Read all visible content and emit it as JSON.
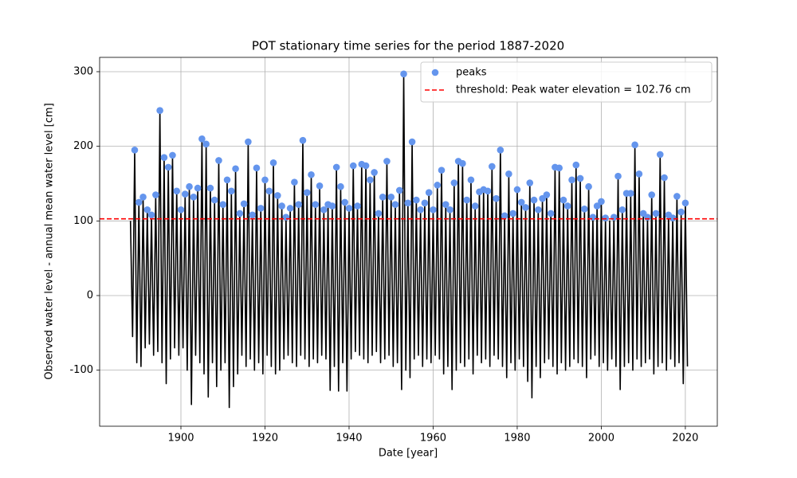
{
  "chart_data": {
    "type": "line",
    "title": "POT stationary time series for the period 1887-2020",
    "x_label": "Date [year]",
    "y_label": "Observed water level - annual mean water level [cm]",
    "xlim": [
      1880.66,
      2027.6
    ],
    "ylim": [
      -175.1,
      319.2
    ],
    "xticks": [
      1900,
      1920,
      1940,
      1960,
      1980,
      2000,
      2020
    ],
    "yticks": [
      -100,
      0,
      100,
      200,
      300
    ],
    "grid": true,
    "legend": "upper right",
    "line": {
      "color": "#000000",
      "x": [
        1888,
        1888.5,
        1889,
        1889.5,
        1890,
        1890.5,
        1891,
        1891.5,
        1892,
        1892.5,
        1893,
        1893.5,
        1894,
        1894.5,
        1895,
        1895.5,
        1896,
        1896.5,
        1897,
        1897.5,
        1898,
        1898.5,
        1899,
        1899.5,
        1900,
        1900.5,
        1901,
        1901.5,
        1902,
        1902.5,
        1903,
        1903.5,
        1904,
        1904.5,
        1905,
        1905.5,
        1906,
        1906.5,
        1907,
        1907.5,
        1908,
        1908.5,
        1909,
        1909.5,
        1910,
        1910.5,
        1911,
        1911.5,
        1912,
        1912.5,
        1913,
        1913.5,
        1914,
        1914.5,
        1915,
        1915.5,
        1916,
        1916.5,
        1917,
        1917.5,
        1918,
        1918.5,
        1919,
        1919.5,
        1920,
        1920.5,
        1921,
        1921.5,
        1922,
        1922.5,
        1923,
        1923.5,
        1924,
        1924.5,
        1925,
        1925.5,
        1926,
        1926.5,
        1927,
        1927.5,
        1928,
        1928.5,
        1929,
        1929.5,
        1930,
        1930.5,
        1931,
        1931.5,
        1932,
        1932.5,
        1933,
        1933.5,
        1934,
        1934.5,
        1935,
        1935.5,
        1936,
        1936.5,
        1937,
        1937.5,
        1938,
        1938.5,
        1939,
        1939.5,
        1940,
        1940.5,
        1941,
        1941.5,
        1942,
        1942.5,
        1943,
        1943.5,
        1944,
        1944.5,
        1945,
        1945.5,
        1946,
        1946.5,
        1947,
        1947.5,
        1948,
        1948.5,
        1949,
        1949.5,
        1950,
        1950.5,
        1951,
        1951.5,
        1952,
        1952.5,
        1953,
        1953.5,
        1954,
        1954.5,
        1955,
        1955.5,
        1956,
        1956.5,
        1957,
        1957.5,
        1958,
        1958.5,
        1959,
        1959.5,
        1960,
        1960.5,
        1961,
        1961.5,
        1962,
        1962.5,
        1963,
        1963.5,
        1964,
        1964.5,
        1965,
        1965.5,
        1966,
        1966.5,
        1967,
        1967.5,
        1968,
        1968.5,
        1969,
        1969.5,
        1970,
        1970.5,
        1971,
        1971.5,
        1972,
        1972.5,
        1973,
        1973.5,
        1974,
        1974.5,
        1975,
        1975.5,
        1976,
        1976.5,
        1977,
        1977.5,
        1978,
        1978.5,
        1979,
        1979.5,
        1980,
        1980.5,
        1981,
        1981.5,
        1982,
        1982.5,
        1983,
        1983.5,
        1984,
        1984.5,
        1985,
        1985.5,
        1986,
        1986.5,
        1987,
        1987.5,
        1988,
        1988.5,
        1989,
        1989.5,
        1990,
        1990.5,
        1991,
        1991.5,
        1992,
        1992.5,
        1993,
        1993.5,
        1994,
        1994.5,
        1995,
        1995.5,
        1996,
        1996.5,
        1997,
        1997.5,
        1998,
        1998.5,
        1999,
        1999.5,
        2000,
        2000.5,
        2001,
        2001.5,
        2002,
        2002.5,
        2003,
        2003.5,
        2004,
        2004.5,
        2005,
        2005.5,
        2006,
        2006.5,
        2007,
        2007.5,
        2008,
        2008.5,
        2009,
        2009.5,
        2010,
        2010.5,
        2011,
        2011.5,
        2012,
        2012.5,
        2013,
        2013.5,
        2014,
        2014.5,
        2015,
        2015.5,
        2016,
        2016.5,
        2017,
        2017.5,
        2018,
        2018.5,
        2019,
        2019.5,
        2020,
        2020.5
      ],
      "values": [
        100,
        -55,
        195,
        -90,
        125,
        -95,
        132,
        -70,
        115,
        -65,
        108,
        -80,
        135,
        -75,
        248,
        -90,
        185,
        -118,
        172,
        -85,
        188,
        -70,
        140,
        -80,
        115,
        -70,
        136,
        -100,
        146,
        -146,
        132,
        -80,
        144,
        -90,
        210,
        -105,
        203,
        -136,
        144,
        -90,
        128,
        -122,
        181,
        -100,
        122,
        -90,
        155,
        -150,
        140,
        -122,
        170,
        -105,
        110,
        -80,
        123,
        -95,
        206,
        -85,
        108,
        -100,
        171,
        -90,
        117,
        -105,
        155,
        -80,
        140,
        -95,
        178,
        -105,
        134,
        -100,
        120,
        -85,
        105,
        -80,
        117,
        -90,
        152,
        -95,
        122,
        -80,
        208,
        -85,
        138,
        -95,
        162,
        -85,
        122,
        -90,
        147,
        -80,
        115,
        -85,
        122,
        -127,
        120,
        -95,
        172,
        -128,
        146,
        -90,
        125,
        -128,
        117,
        -85,
        174,
        -75,
        120,
        -80,
        176,
        -85,
        174,
        -90,
        155,
        -80,
        165,
        -75,
        110,
        -90,
        132,
        -85,
        180,
        -80,
        132,
        -95,
        122,
        -90,
        141,
        -126,
        297,
        -100,
        124,
        -110,
        206,
        -85,
        128,
        -80,
        115,
        -95,
        124,
        -85,
        138,
        -90,
        115,
        -80,
        148,
        -85,
        168,
        -105,
        122,
        -95,
        115,
        -126,
        151,
        -100,
        180,
        -90,
        177,
        -95,
        128,
        -85,
        155,
        -105,
        120,
        -80,
        139,
        -90,
        142,
        -85,
        140,
        -95,
        173,
        -80,
        130,
        -85,
        195,
        -95,
        107,
        -110,
        163,
        -90,
        110,
        -100,
        142,
        -85,
        125,
        -95,
        118,
        -115,
        151,
        -137,
        128,
        -95,
        115,
        -110,
        130,
        -90,
        135,
        -85,
        110,
        -95,
        172,
        -105,
        171,
        -90,
        128,
        -100,
        120,
        -95,
        155,
        -85,
        175,
        -90,
        157,
        -95,
        116,
        -110,
        146,
        -85,
        105,
        -80,
        120,
        -95,
        126,
        -90,
        104,
        -100,
        100,
        -85,
        105,
        -95,
        160,
        -126,
        115,
        -95,
        137,
        -90,
        137,
        -100,
        202,
        -85,
        163,
        -95,
        110,
        -90,
        105,
        -85,
        135,
        -105,
        110,
        -95,
        189,
        -90,
        158,
        -100,
        108,
        -85,
        104,
        -95,
        133,
        -90,
        112,
        -118,
        124,
        -95
      ]
    },
    "peaks": {
      "name": "peaks",
      "color": "#6495ed",
      "x": [
        1889,
        1890,
        1891,
        1892,
        1893,
        1894,
        1895,
        1896,
        1897,
        1898,
        1899,
        1900,
        1901,
        1902,
        1903,
        1904,
        1905,
        1906,
        1907,
        1908,
        1909,
        1910,
        1911,
        1912,
        1913,
        1914,
        1915,
        1916,
        1917,
        1918,
        1919,
        1920,
        1921,
        1922,
        1923,
        1924,
        1925,
        1926,
        1927,
        1928,
        1929,
        1930,
        1931,
        1932,
        1933,
        1934,
        1935,
        1936,
        1937,
        1938,
        1939,
        1940,
        1941,
        1942,
        1943,
        1944,
        1945,
        1946,
        1947,
        1948,
        1949,
        1950,
        1951,
        1952,
        1953,
        1954,
        1955,
        1956,
        1957,
        1958,
        1959,
        1960,
        1961,
        1962,
        1963,
        1964,
        1965,
        1966,
        1967,
        1968,
        1969,
        1970,
        1971,
        1972,
        1973,
        1974,
        1975,
        1976,
        1977,
        1978,
        1979,
        1980,
        1981,
        1982,
        1983,
        1984,
        1985,
        1986,
        1987,
        1988,
        1989,
        1990,
        1991,
        1992,
        1993,
        1994,
        1995,
        1996,
        1997,
        1998,
        1999,
        2000,
        2001,
        2003,
        2004,
        2005,
        2006,
        2007,
        2008,
        2009,
        2010,
        2011,
        2012,
        2013,
        2014,
        2015,
        2016,
        2017,
        2018,
        2019,
        2020
      ],
      "values": [
        195,
        125,
        132,
        115,
        108,
        135,
        248,
        185,
        172,
        188,
        140,
        115,
        136,
        146,
        132,
        144,
        210,
        203,
        144,
        128,
        181,
        122,
        155,
        140,
        170,
        110,
        123,
        206,
        108,
        171,
        117,
        155,
        140,
        178,
        134,
        120,
        105,
        117,
        152,
        122,
        208,
        138,
        162,
        122,
        147,
        115,
        122,
        120,
        172,
        146,
        125,
        117,
        174,
        120,
        176,
        174,
        155,
        165,
        110,
        132,
        180,
        132,
        122,
        141,
        297,
        124,
        206,
        128,
        115,
        124,
        138,
        115,
        148,
        168,
        122,
        115,
        151,
        180,
        177,
        128,
        155,
        120,
        139,
        142,
        140,
        173,
        130,
        195,
        107,
        163,
        110,
        142,
        125,
        118,
        151,
        128,
        115,
        130,
        135,
        110,
        172,
        171,
        128,
        120,
        155,
        175,
        157,
        116,
        146,
        105,
        120,
        126,
        104,
        105,
        160,
        115,
        137,
        137,
        202,
        163,
        110,
        105,
        135,
        110,
        189,
        158,
        108,
        104,
        133,
        112,
        124
      ]
    },
    "threshold": {
      "name": "threshold: Peak water elevation = 102.76 cm",
      "value": 102.76,
      "color": "#ff0000"
    }
  }
}
